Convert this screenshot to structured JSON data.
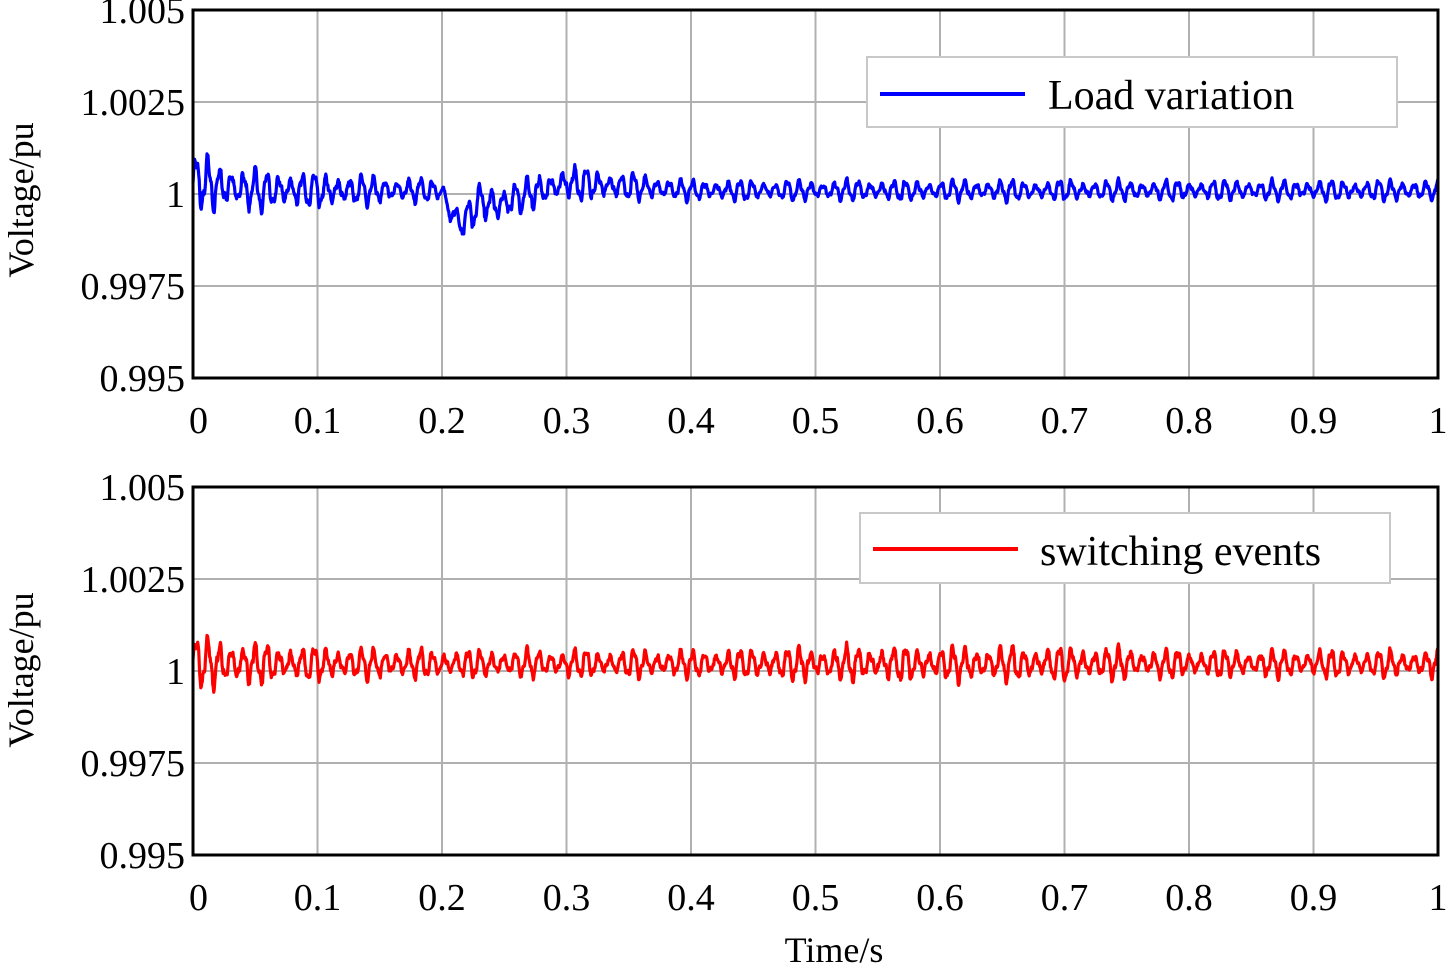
{
  "chart_data": [
    {
      "type": "line",
      "title": "",
      "xlabel": "",
      "ylabel": "Voltage/pu",
      "xlim": [
        0,
        1
      ],
      "ylim": [
        0.995,
        1.005
      ],
      "xticks": [
        0,
        0.1,
        0.2,
        0.3,
        0.4,
        0.5,
        0.6,
        0.7,
        0.8,
        0.9,
        1
      ],
      "xtick_labels": [
        "0",
        "0.1",
        "0.2",
        "0.3",
        "0.4",
        "0.5",
        "0.6",
        "0.7",
        "0.8",
        "0.9",
        "1"
      ],
      "yticks": [
        0.995,
        0.9975,
        1,
        1.0025,
        1.005
      ],
      "ytick_labels": [
        "0.995",
        "0.9975",
        "1",
        "1.0025",
        "1.005"
      ],
      "grid": true,
      "legend_position": "top-right",
      "series": [
        {
          "name": "Load variation",
          "color": "#0000ff",
          "x": [
            0,
            0.02,
            0.05,
            0.1,
            0.15,
            0.2,
            0.205,
            0.215,
            0.22,
            0.23,
            0.245,
            0.26,
            0.3,
            0.35,
            0.4,
            0.5,
            0.6,
            0.7,
            0.8,
            0.9,
            1.0
          ],
          "y_center": [
            1.0004,
            1.0002,
            1.0001,
            1.0001,
            1.0001,
            1.0001,
            0.9996,
            0.9992,
            0.9993,
            0.9998,
            0.9997,
            0.9999,
            1.0003,
            1.0002,
            1.0001,
            1.0001,
            1.0001,
            1.0001,
            1.0001,
            1.0001,
            1.0001
          ],
          "y_amplitude": [
            0.0008,
            0.0007,
            0.0006,
            0.0005,
            0.0004,
            0.0003,
            0.0004,
            0.0005,
            0.0005,
            0.0005,
            0.0006,
            0.0005,
            0.0005,
            0.0004,
            0.0003,
            0.0003,
            0.0003,
            0.0003,
            0.0003,
            0.0003,
            0.0003
          ],
          "oscillation_period": 0.0095
        }
      ]
    },
    {
      "type": "line",
      "title": "",
      "xlabel": "Time/s",
      "ylabel": "Voltage/pu",
      "xlim": [
        0,
        1
      ],
      "ylim": [
        0.995,
        1.005
      ],
      "xticks": [
        0,
        0.1,
        0.2,
        0.3,
        0.4,
        0.5,
        0.6,
        0.7,
        0.8,
        0.9,
        1
      ],
      "xtick_labels": [
        "0",
        "0.1",
        "0.2",
        "0.3",
        "0.4",
        "0.5",
        "0.6",
        "0.7",
        "0.8",
        "0.9",
        "1"
      ],
      "yticks": [
        0.995,
        0.9975,
        1,
        1.0025,
        1.005
      ],
      "ytick_labels": [
        "0.995",
        "0.9975",
        "1",
        "1.0025",
        "1.005"
      ],
      "grid": true,
      "legend_position": "top-right",
      "series": [
        {
          "name": "switching events",
          "color": "#ff0000",
          "x": [
            0,
            0.02,
            0.05,
            0.1,
            0.2,
            0.3,
            0.4,
            0.5,
            0.6,
            0.7,
            0.8,
            0.9,
            1.0
          ],
          "y_center": [
            1.0003,
            1.0002,
            1.0002,
            1.0002,
            1.0002,
            1.0002,
            1.0002,
            1.0002,
            1.0002,
            1.0002,
            1.0002,
            1.0002,
            1.0002
          ],
          "y_amplitude": [
            0.0008,
            0.0007,
            0.0006,
            0.0005,
            0.0004,
            0.0004,
            0.0004,
            0.0005,
            0.0005,
            0.0005,
            0.0004,
            0.0004,
            0.0004
          ],
          "oscillation_period": 0.0095
        }
      ]
    }
  ]
}
